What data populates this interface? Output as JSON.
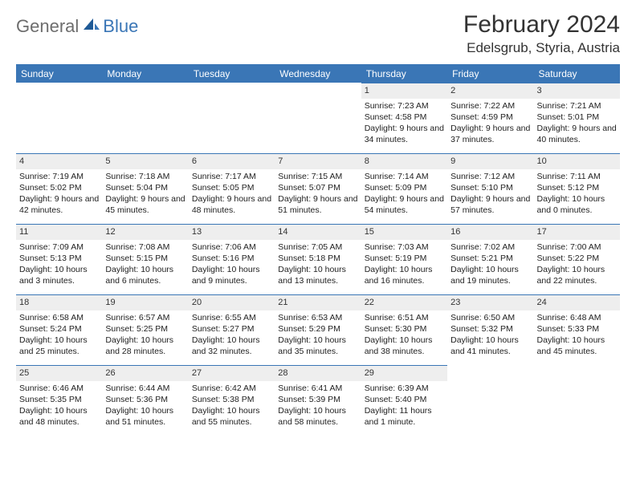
{
  "logo": {
    "part1": "General",
    "part2": "Blue"
  },
  "title": "February 2024",
  "location": "Edelsgrub, Styria, Austria",
  "colors": {
    "accent": "#3a76b6",
    "header_bg": "#3a76b6",
    "daynum_bg": "#eeeeee"
  },
  "daynames": [
    "Sunday",
    "Monday",
    "Tuesday",
    "Wednesday",
    "Thursday",
    "Friday",
    "Saturday"
  ],
  "weeks": [
    [
      null,
      null,
      null,
      null,
      {
        "n": "1",
        "sr": "7:23 AM",
        "ss": "4:58 PM",
        "dl": "9 hours and 34 minutes."
      },
      {
        "n": "2",
        "sr": "7:22 AM",
        "ss": "4:59 PM",
        "dl": "9 hours and 37 minutes."
      },
      {
        "n": "3",
        "sr": "7:21 AM",
        "ss": "5:01 PM",
        "dl": "9 hours and 40 minutes."
      }
    ],
    [
      {
        "n": "4",
        "sr": "7:19 AM",
        "ss": "5:02 PM",
        "dl": "9 hours and 42 minutes."
      },
      {
        "n": "5",
        "sr": "7:18 AM",
        "ss": "5:04 PM",
        "dl": "9 hours and 45 minutes."
      },
      {
        "n": "6",
        "sr": "7:17 AM",
        "ss": "5:05 PM",
        "dl": "9 hours and 48 minutes."
      },
      {
        "n": "7",
        "sr": "7:15 AM",
        "ss": "5:07 PM",
        "dl": "9 hours and 51 minutes."
      },
      {
        "n": "8",
        "sr": "7:14 AM",
        "ss": "5:09 PM",
        "dl": "9 hours and 54 minutes."
      },
      {
        "n": "9",
        "sr": "7:12 AM",
        "ss": "5:10 PM",
        "dl": "9 hours and 57 minutes."
      },
      {
        "n": "10",
        "sr": "7:11 AM",
        "ss": "5:12 PM",
        "dl": "10 hours and 0 minutes."
      }
    ],
    [
      {
        "n": "11",
        "sr": "7:09 AM",
        "ss": "5:13 PM",
        "dl": "10 hours and 3 minutes."
      },
      {
        "n": "12",
        "sr": "7:08 AM",
        "ss": "5:15 PM",
        "dl": "10 hours and 6 minutes."
      },
      {
        "n": "13",
        "sr": "7:06 AM",
        "ss": "5:16 PM",
        "dl": "10 hours and 9 minutes."
      },
      {
        "n": "14",
        "sr": "7:05 AM",
        "ss": "5:18 PM",
        "dl": "10 hours and 13 minutes."
      },
      {
        "n": "15",
        "sr": "7:03 AM",
        "ss": "5:19 PM",
        "dl": "10 hours and 16 minutes."
      },
      {
        "n": "16",
        "sr": "7:02 AM",
        "ss": "5:21 PM",
        "dl": "10 hours and 19 minutes."
      },
      {
        "n": "17",
        "sr": "7:00 AM",
        "ss": "5:22 PM",
        "dl": "10 hours and 22 minutes."
      }
    ],
    [
      {
        "n": "18",
        "sr": "6:58 AM",
        "ss": "5:24 PM",
        "dl": "10 hours and 25 minutes."
      },
      {
        "n": "19",
        "sr": "6:57 AM",
        "ss": "5:25 PM",
        "dl": "10 hours and 28 minutes."
      },
      {
        "n": "20",
        "sr": "6:55 AM",
        "ss": "5:27 PM",
        "dl": "10 hours and 32 minutes."
      },
      {
        "n": "21",
        "sr": "6:53 AM",
        "ss": "5:29 PM",
        "dl": "10 hours and 35 minutes."
      },
      {
        "n": "22",
        "sr": "6:51 AM",
        "ss": "5:30 PM",
        "dl": "10 hours and 38 minutes."
      },
      {
        "n": "23",
        "sr": "6:50 AM",
        "ss": "5:32 PM",
        "dl": "10 hours and 41 minutes."
      },
      {
        "n": "24",
        "sr": "6:48 AM",
        "ss": "5:33 PM",
        "dl": "10 hours and 45 minutes."
      }
    ],
    [
      {
        "n": "25",
        "sr": "6:46 AM",
        "ss": "5:35 PM",
        "dl": "10 hours and 48 minutes."
      },
      {
        "n": "26",
        "sr": "6:44 AM",
        "ss": "5:36 PM",
        "dl": "10 hours and 51 minutes."
      },
      {
        "n": "27",
        "sr": "6:42 AM",
        "ss": "5:38 PM",
        "dl": "10 hours and 55 minutes."
      },
      {
        "n": "28",
        "sr": "6:41 AM",
        "ss": "5:39 PM",
        "dl": "10 hours and 58 minutes."
      },
      {
        "n": "29",
        "sr": "6:39 AM",
        "ss": "5:40 PM",
        "dl": "11 hours and 1 minute."
      },
      null,
      null
    ]
  ],
  "labels": {
    "sunrise": "Sunrise:",
    "sunset": "Sunset:",
    "daylight": "Daylight:"
  }
}
